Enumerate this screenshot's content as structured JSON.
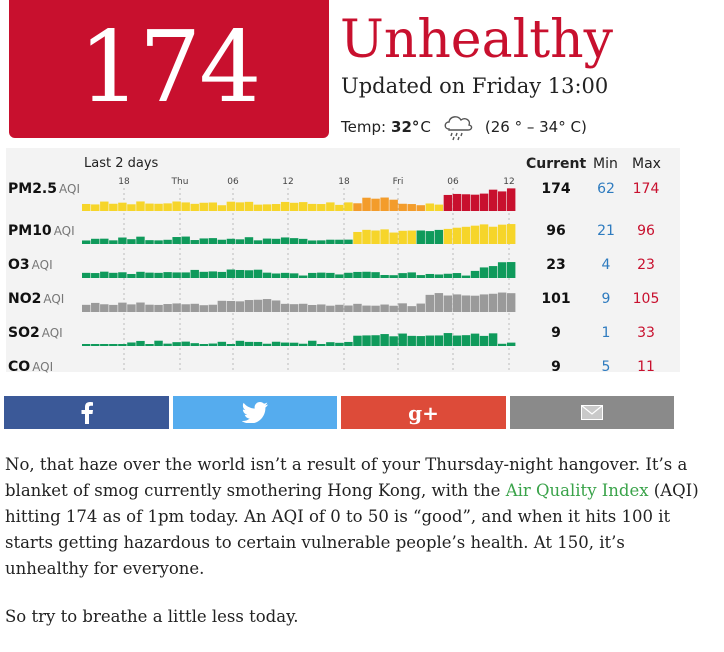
{
  "widget": {
    "aqi_value": "174",
    "status": "Unhealthy",
    "updated": "Updated on Friday 13:00",
    "temp_label": "Temp:",
    "temp_value": "32°",
    "temp_unit": "C",
    "temp_range": "(26 ° – 34° C)",
    "weather_icon": "rain-cloud-icon",
    "colors": {
      "unhealthy": "#c8102e",
      "good": "#0f9a5b",
      "moderate": "#f6d52a",
      "unhealthy_sensitive": "#f39c2b",
      "none": "#9a9a9a",
      "min_text": "#2e7bbf"
    }
  },
  "chart": {
    "range_label": "Last 2 days",
    "time_ticks": [
      "18",
      "Thu",
      "06",
      "12",
      "18",
      "Fri",
      "06",
      "12"
    ],
    "headers": {
      "current": "Current",
      "min": "Min",
      "max": "Max"
    },
    "rows": [
      {
        "name": "PM2.5",
        "suffix": "AQI",
        "current": "174",
        "min": "62",
        "max": "174"
      },
      {
        "name": "PM10",
        "suffix": "AQI",
        "current": "96",
        "min": "21",
        "max": "96"
      },
      {
        "name": "O3",
        "suffix": "AQI",
        "current": "23",
        "min": "4",
        "max": "23"
      },
      {
        "name": "NO2",
        "suffix": "AQI",
        "current": "101",
        "min": "9",
        "max": "105"
      },
      {
        "name": "SO2",
        "suffix": "AQI",
        "current": "9",
        "min": "1",
        "max": "33"
      },
      {
        "name": "CO",
        "suffix": "AQI",
        "current": "9",
        "min": "5",
        "max": "11"
      }
    ]
  },
  "share": {
    "facebook_icon": "facebook-icon",
    "twitter_icon": "twitter-icon",
    "gplus_icon": "google-plus-icon",
    "gplus_glyph": "g+",
    "email_icon": "email-icon"
  },
  "article": {
    "p1_before_link": "No, that haze over the world isn’t a result of your Thursday-night hangover. It’s a blanket of smog currently smothering Hong Kong, with the ",
    "p1_link": "Air Quality Index",
    "p1_after_link": " (AQI) hitting 174 as of 1pm today. An AQI of 0 to 50 is “good”, and when it hits 100 it starts getting hazardous to certain vulnerable people’s health. At 150, it’s unhealthy for everyone.",
    "p2": "So try to breathe a little less today."
  }
}
